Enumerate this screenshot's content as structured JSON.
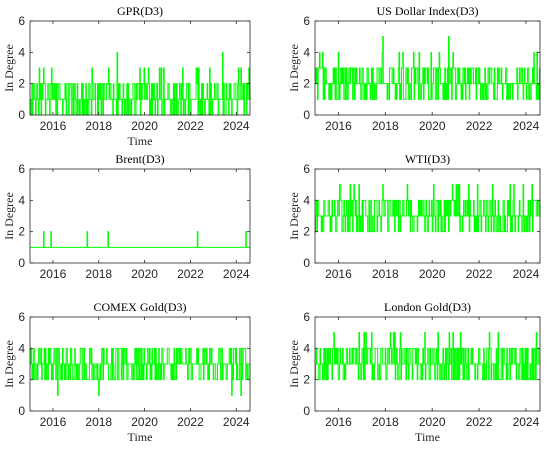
{
  "chart_data": [
    {
      "type": "line",
      "title": "GPR(D3)",
      "xlabel": "Time",
      "ylabel": "In Degree",
      "xlim": [
        2015.0,
        2024.6
      ],
      "ylim": [
        0,
        6
      ],
      "xticks": [
        "2016",
        "2018",
        "2020",
        "2022",
        "2024"
      ],
      "yticks": [
        "0",
        "2",
        "4",
        "6"
      ],
      "color": "#00ff00",
      "grid": false,
      "values_summary": {
        "baseline": 1,
        "range": [
          0,
          3
        ],
        "spikes": [
          {
            "x": 2018.8,
            "y": 4
          },
          {
            "x": 2023.4,
            "y": 4
          }
        ]
      }
    },
    {
      "type": "line",
      "title": "US Dollar Index(D3)",
      "xlabel": "",
      "ylabel": "In Degree",
      "xlim": [
        2015.0,
        2024.6
      ],
      "ylim": [
        0,
        6
      ],
      "xticks": [
        "2016",
        "2018",
        "2020",
        "2022",
        "2024"
      ],
      "yticks": [
        "0",
        "2",
        "4",
        "6"
      ],
      "color": "#00ff00",
      "grid": false,
      "values_summary": {
        "baseline": 2,
        "range": [
          1,
          4
        ],
        "spikes": [
          {
            "x": 2017.9,
            "y": 5
          },
          {
            "x": 2020.7,
            "y": 5
          }
        ]
      }
    },
    {
      "type": "line",
      "title": "Brent(D3)",
      "xlabel": "",
      "ylabel": "In Degree",
      "xlim": [
        2015.0,
        2024.6
      ],
      "ylim": [
        0,
        6
      ],
      "xticks": [
        "2016",
        "2018",
        "2020",
        "2022",
        "2024"
      ],
      "yticks": [
        "0",
        "2",
        "4",
        "6"
      ],
      "color": "#00ff00",
      "grid": false,
      "values_summary": {
        "baseline": 1,
        "spikes": [
          {
            "x": 2015.6,
            "y": 2
          },
          {
            "x": 2015.9,
            "y": 2
          },
          {
            "x": 2017.5,
            "y": 2
          },
          {
            "x": 2018.4,
            "y": 2
          },
          {
            "x": 2022.3,
            "y": 2
          },
          {
            "x": 2024.4,
            "y": 2
          }
        ]
      }
    },
    {
      "type": "line",
      "title": "WTI(D3)",
      "xlabel": "",
      "ylabel": "In Degree",
      "xlim": [
        2015.0,
        2024.6
      ],
      "ylim": [
        0,
        6
      ],
      "xticks": [
        "2016",
        "2018",
        "2020",
        "2022",
        "2024"
      ],
      "yticks": [
        "0",
        "2",
        "4",
        "6"
      ],
      "color": "#00ff00",
      "grid": false,
      "values_summary": {
        "baseline": 3,
        "range": [
          2,
          5
        ]
      }
    },
    {
      "type": "line",
      "title": "COMEX Gold(D3)",
      "xlabel": "Time",
      "ylabel": "In Degree",
      "xlim": [
        2015.0,
        2024.6
      ],
      "ylim": [
        0,
        6
      ],
      "xticks": [
        "2016",
        "2018",
        "2020",
        "2022",
        "2024"
      ],
      "yticks": [
        "0",
        "2",
        "4",
        "6"
      ],
      "color": "#00ff00",
      "grid": false,
      "values_summary": {
        "baseline": 3,
        "range": [
          2,
          4
        ],
        "dips": [
          {
            "x": 2016.2,
            "y": 1
          },
          {
            "x": 2018.0,
            "y": 1
          },
          {
            "x": 2023.8,
            "y": 1
          },
          {
            "x": 2024.2,
            "y": 1
          }
        ]
      }
    },
    {
      "type": "line",
      "title": "London Gold(D3)",
      "xlabel": "Time",
      "ylabel": "In Degree",
      "xlim": [
        2015.0,
        2024.6
      ],
      "ylim": [
        0,
        6
      ],
      "xticks": [
        "2016",
        "2018",
        "2020",
        "2022",
        "2024"
      ],
      "yticks": [
        "0",
        "2",
        "4",
        "6"
      ],
      "color": "#00ff00",
      "grid": false,
      "values_summary": {
        "baseline": 3,
        "range": [
          2,
          5
        ]
      }
    }
  ]
}
